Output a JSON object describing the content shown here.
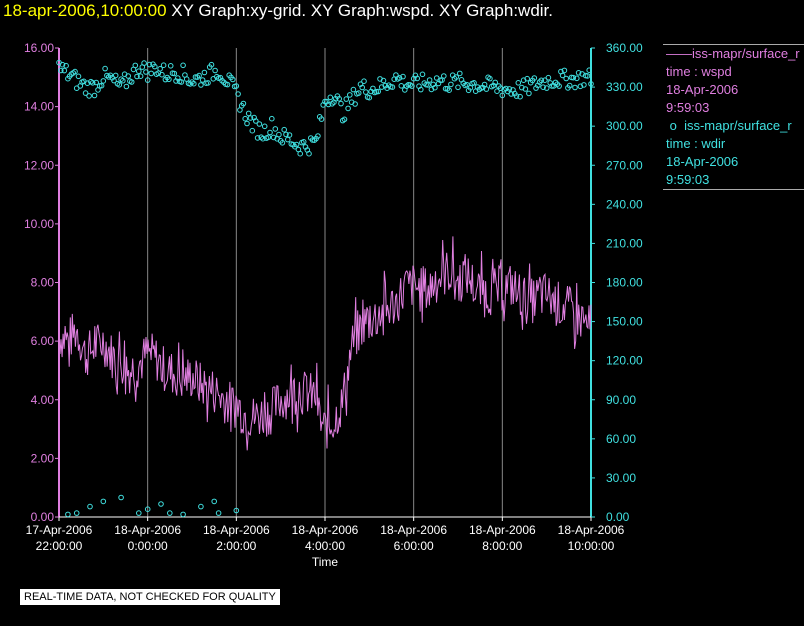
{
  "header": {
    "timestamp": "18-apr-2006,10:00:00",
    "graphs": "XY Graph:xy-grid.  XY Graph:wspd.  XY Graph:wdir."
  },
  "legend": {
    "wspd": {
      "source": "iss-mapr/surface_r",
      "variable": "time : wspd",
      "date": "18-Apr-2006",
      "time": "9:59:03"
    },
    "wdir": {
      "source": "iss-mapr/surface_r",
      "variable": "time : wdir",
      "date": "18-Apr-2006",
      "time": "9:59:03"
    }
  },
  "footer": {
    "note": "REAL-TIME DATA, NOT CHECKED FOR QUALITY"
  },
  "colors": {
    "wspd": "#e07fe0",
    "wdir": "#40e0e0",
    "grid": "#888888",
    "title_time": "#ffff00"
  },
  "chart_data": {
    "type": "line",
    "xlabel": "Time",
    "x_tick_labels": [
      [
        "17-Apr-2006",
        "22:00:00"
      ],
      [
        "18-Apr-2006",
        "0:00:00"
      ],
      [
        "18-Apr-2006",
        "2:00:00"
      ],
      [
        "18-Apr-2006",
        "4:00:00"
      ],
      [
        "18-Apr-2006",
        "6:00:00"
      ],
      [
        "18-Apr-2006",
        "8:00:00"
      ],
      [
        "18-Apr-2006",
        "10:00:00"
      ]
    ],
    "x_tick_hours": [
      -2,
      0,
      2,
      4,
      6,
      8,
      10
    ],
    "xlim_hours": [
      -2,
      10
    ],
    "y_left_ticks": [
      "0.00",
      "2.00",
      "4.00",
      "6.00",
      "8.00",
      "10.00",
      "12.00",
      "14.00",
      "16.00"
    ],
    "y_left_lim": [
      0,
      16
    ],
    "y_right_ticks": [
      "0.00",
      "30.00",
      "60.00",
      "90.00",
      "120.00",
      "150.00",
      "180.00",
      "210.00",
      "240.00",
      "270.00",
      "300.00",
      "330.00",
      "360.00"
    ],
    "y_right_lim": [
      0,
      360
    ],
    "series": [
      {
        "key": "wspd",
        "axis": "left",
        "style": "line",
        "points": [
          [
            -2.0,
            6.2
          ],
          [
            -1.8,
            6.0
          ],
          [
            -1.6,
            6.4
          ],
          [
            -1.4,
            5.5
          ],
          [
            -1.2,
            5.8
          ],
          [
            -1.0,
            6.0
          ],
          [
            -0.8,
            5.5
          ],
          [
            -0.6,
            5.3
          ],
          [
            -0.4,
            5.0
          ],
          [
            -0.2,
            5.2
          ],
          [
            0.0,
            5.6
          ],
          [
            0.2,
            5.4
          ],
          [
            0.4,
            5.0
          ],
          [
            0.6,
            4.9
          ],
          [
            0.8,
            4.7
          ],
          [
            1.0,
            4.8
          ],
          [
            1.2,
            4.5
          ],
          [
            1.4,
            4.4
          ],
          [
            1.6,
            4.2
          ],
          [
            1.8,
            3.9
          ],
          [
            2.0,
            3.8
          ],
          [
            2.2,
            3.5
          ],
          [
            2.4,
            3.4
          ],
          [
            2.6,
            3.5
          ],
          [
            2.8,
            3.6
          ],
          [
            3.0,
            4.0
          ],
          [
            3.2,
            4.2
          ],
          [
            3.4,
            4.3
          ],
          [
            3.6,
            4.2
          ],
          [
            3.8,
            4.1
          ],
          [
            3.9,
            3.2
          ],
          [
            4.0,
            3.0
          ],
          [
            4.2,
            3.3
          ],
          [
            4.4,
            3.9
          ],
          [
            4.6,
            5.8
          ],
          [
            4.8,
            6.5
          ],
          [
            5.0,
            6.7
          ],
          [
            5.2,
            6.9
          ],
          [
            5.4,
            7.1
          ],
          [
            5.6,
            7.3
          ],
          [
            5.8,
            7.8
          ],
          [
            6.0,
            7.9
          ],
          [
            6.2,
            7.7
          ],
          [
            6.4,
            7.9
          ],
          [
            6.6,
            8.2
          ],
          [
            6.8,
            8.4
          ],
          [
            7.0,
            8.0
          ],
          [
            7.2,
            8.3
          ],
          [
            7.4,
            7.8
          ],
          [
            7.6,
            7.6
          ],
          [
            7.8,
            7.7
          ],
          [
            8.0,
            7.8
          ],
          [
            8.2,
            7.9
          ],
          [
            8.4,
            7.6
          ],
          [
            8.6,
            7.3
          ],
          [
            8.8,
            7.5
          ],
          [
            9.0,
            7.6
          ],
          [
            9.2,
            7.3
          ],
          [
            9.4,
            7.2
          ],
          [
            9.6,
            7.0
          ],
          [
            9.8,
            6.7
          ],
          [
            10.0,
            6.4
          ]
        ],
        "jitter": 0.8
      },
      {
        "key": "wdir",
        "axis": "right",
        "style": "markers",
        "points": [
          [
            -2.0,
            345
          ],
          [
            -1.8,
            340
          ],
          [
            -1.6,
            335
          ],
          [
            -1.4,
            330
          ],
          [
            -1.2,
            330
          ],
          [
            -1.0,
            338
          ],
          [
            -0.8,
            335
          ],
          [
            -0.6,
            330
          ],
          [
            -0.4,
            338
          ],
          [
            -0.2,
            345
          ],
          [
            0.0,
            342
          ],
          [
            0.2,
            345
          ],
          [
            0.4,
            340
          ],
          [
            0.6,
            342
          ],
          [
            0.8,
            340
          ],
          [
            1.0,
            335
          ],
          [
            1.2,
            337
          ],
          [
            1.4,
            340
          ],
          [
            1.6,
            343
          ],
          [
            1.8,
            335
          ],
          [
            2.0,
            325
          ],
          [
            2.2,
            310
          ],
          [
            2.4,
            300
          ],
          [
            2.6,
            295
          ],
          [
            2.8,
            300
          ],
          [
            3.0,
            292
          ],
          [
            3.2,
            290
          ],
          [
            3.4,
            285
          ],
          [
            3.6,
            285
          ],
          [
            3.8,
            288
          ],
          [
            4.0,
            320
          ],
          [
            4.2,
            325
          ],
          [
            4.4,
            310
          ],
          [
            4.6,
            320
          ],
          [
            4.8,
            330
          ],
          [
            5.0,
            328
          ],
          [
            5.2,
            330
          ],
          [
            5.4,
            333
          ],
          [
            5.6,
            337
          ],
          [
            5.8,
            333
          ],
          [
            6.0,
            332
          ],
          [
            6.2,
            333
          ],
          [
            6.4,
            334
          ],
          [
            6.6,
            335
          ],
          [
            6.8,
            333
          ],
          [
            7.0,
            334
          ],
          [
            7.2,
            333
          ],
          [
            7.4,
            332
          ],
          [
            7.6,
            331
          ],
          [
            7.8,
            330
          ],
          [
            8.0,
            329
          ],
          [
            8.2,
            328
          ],
          [
            8.4,
            328
          ],
          [
            8.6,
            330
          ],
          [
            8.8,
            333
          ],
          [
            9.0,
            335
          ],
          [
            9.2,
            336
          ],
          [
            9.4,
            336
          ],
          [
            9.6,
            336
          ],
          [
            9.8,
            337
          ],
          [
            10.0,
            337
          ]
        ],
        "low_outliers": [
          [
            -1.8,
            2
          ],
          [
            -1.6,
            3
          ],
          [
            -1.3,
            8
          ],
          [
            -1.0,
            12
          ],
          [
            -0.6,
            15
          ],
          [
            -0.2,
            3
          ],
          [
            0.0,
            6
          ],
          [
            0.3,
            10
          ],
          [
            0.5,
            3
          ],
          [
            0.8,
            2
          ],
          [
            1.2,
            8
          ],
          [
            1.6,
            3
          ],
          [
            2.0,
            5
          ],
          [
            1.5,
            12
          ]
        ],
        "jitter": 7
      }
    ]
  }
}
